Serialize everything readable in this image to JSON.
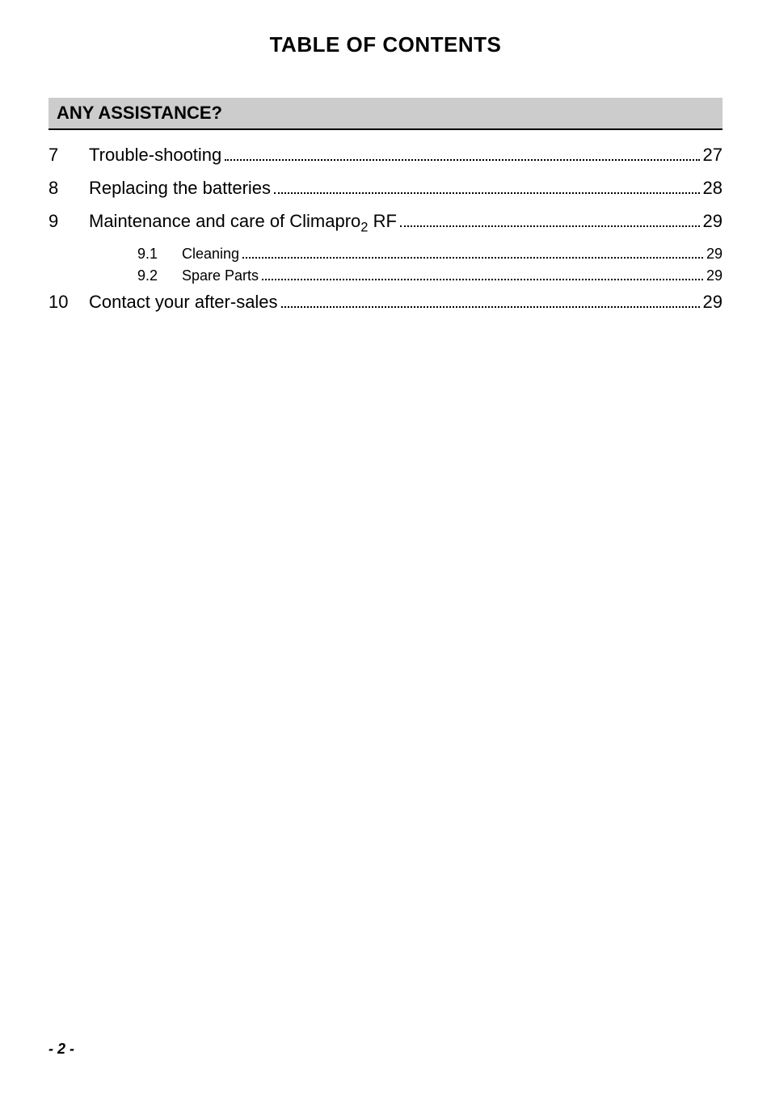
{
  "title": "TABLE OF CONTENTS",
  "section_header": "ANY ASSISTANCE?",
  "entries": [
    {
      "num": "7",
      "label": "Trouble-shooting",
      "page": "27",
      "subs": []
    },
    {
      "num": "8",
      "label": "Replacing the batteries",
      "page": "28",
      "subs": []
    },
    {
      "num": "9",
      "label_before": "Maintenance and care of Climapro",
      "label_sub": "2",
      "label_after": " RF",
      "page": "29",
      "subs": [
        {
          "num": "9.1",
          "label": "Cleaning",
          "page": "29"
        },
        {
          "num": "9.2",
          "label": "Spare Parts",
          "page": "29"
        }
      ]
    },
    {
      "num": "10",
      "label": "Contact your after-sales",
      "page": "29",
      "subs": []
    }
  ],
  "footer": "- 2 -",
  "colors": {
    "background": "#ffffff",
    "text": "#000000",
    "header_bg": "#cccccc",
    "header_border": "#000000"
  },
  "typography": {
    "title_fontsize": 26,
    "section_header_fontsize": 22,
    "main_entry_fontsize": 22,
    "sub_entry_fontsize": 18,
    "footer_fontsize": 18
  }
}
